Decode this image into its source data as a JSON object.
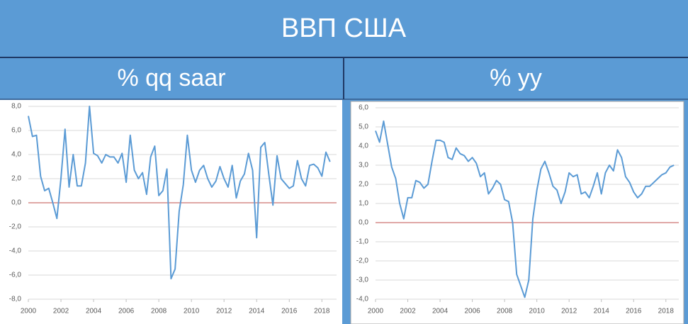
{
  "header": {
    "title": "ВВП США"
  },
  "chart_data": [
    {
      "type": "line",
      "title": "% qq saar",
      "x": [
        2000,
        2000.25,
        2000.5,
        2000.75,
        2001,
        2001.25,
        2001.5,
        2001.75,
        2002,
        2002.25,
        2002.5,
        2002.75,
        2003,
        2003.25,
        2003.5,
        2003.75,
        2004,
        2004.25,
        2004.5,
        2004.75,
        2005,
        2005.25,
        2005.5,
        2005.75,
        2006,
        2006.25,
        2006.5,
        2006.75,
        2007,
        2007.25,
        2007.5,
        2007.75,
        2008,
        2008.25,
        2008.5,
        2008.75,
        2009,
        2009.25,
        2009.5,
        2009.75,
        2010,
        2010.25,
        2010.5,
        2010.75,
        2011,
        2011.25,
        2011.5,
        2011.75,
        2012,
        2012.25,
        2012.5,
        2012.75,
        2013,
        2013.25,
        2013.5,
        2013.75,
        2014,
        2014.25,
        2014.5,
        2014.75,
        2015,
        2015.25,
        2015.5,
        2015.75,
        2016,
        2016.25,
        2016.5,
        2016.75,
        2017,
        2017.25,
        2017.5,
        2017.75,
        2018,
        2018.25,
        2018.5
      ],
      "series": [
        {
          "color": "#5b9bd5",
          "values": [
            7.2,
            5.5,
            5.6,
            2.2,
            1.0,
            1.2,
            0.0,
            -1.3,
            2.0,
            6.1,
            1.3,
            4.0,
            1.4,
            1.4,
            3.3,
            8.0,
            4.1,
            3.9,
            3.3,
            4.0,
            3.8,
            3.8,
            3.3,
            4.1,
            1.7,
            5.6,
            2.7,
            2.0,
            2.5,
            0.7,
            3.8,
            4.7,
            0.6,
            1.0,
            2.8,
            -6.3,
            -5.5,
            -0.7,
            1.5,
            5.6,
            2.7,
            1.7,
            2.7,
            3.1,
            2.0,
            1.3,
            1.8,
            3.0,
            2.0,
            1.3,
            3.1,
            0.4,
            1.8,
            2.4,
            4.1,
            2.7,
            -2.9,
            4.6,
            5.0,
            2.3,
            -0.2,
            3.9,
            2.0,
            1.6,
            1.2,
            1.4,
            3.5,
            2.0,
            1.4,
            3.1,
            3.2,
            2.9,
            2.2,
            4.2,
            3.4
          ]
        }
      ],
      "xlim": [
        2000,
        2018.9
      ],
      "xticks": [
        2000,
        2002,
        2004,
        2006,
        2008,
        2010,
        2012,
        2014,
        2016,
        2018
      ],
      "ylim": [
        -8,
        8
      ],
      "yticks": [
        {
          "value": -8,
          "label": "-8,0"
        },
        {
          "value": -6,
          "label": "-6,0"
        },
        {
          "value": -4,
          "label": "-4,0"
        },
        {
          "value": -2,
          "label": "-2,0"
        },
        {
          "value": 0,
          "label": "0,0"
        },
        {
          "value": 2,
          "label": "2,0"
        },
        {
          "value": 4,
          "label": "4,0"
        },
        {
          "value": 6,
          "label": "6,0"
        },
        {
          "value": 8,
          "label": "8,0"
        }
      ],
      "grid": true,
      "reference_line": {
        "value": 0,
        "color": "#c0504d"
      }
    },
    {
      "type": "line",
      "title": "% yy",
      "x": [
        2000,
        2000.25,
        2000.5,
        2000.75,
        2001,
        2001.25,
        2001.5,
        2001.75,
        2002,
        2002.25,
        2002.5,
        2002.75,
        2003,
        2003.25,
        2003.5,
        2003.75,
        2004,
        2004.25,
        2004.5,
        2004.75,
        2005,
        2005.25,
        2005.5,
        2005.75,
        2006,
        2006.25,
        2006.5,
        2006.75,
        2007,
        2007.25,
        2007.5,
        2007.75,
        2008,
        2008.25,
        2008.5,
        2008.75,
        2009,
        2009.25,
        2009.5,
        2009.75,
        2010,
        2010.25,
        2010.5,
        2010.75,
        2011,
        2011.25,
        2011.5,
        2011.75,
        2012,
        2012.25,
        2012.5,
        2012.75,
        2013,
        2013.25,
        2013.5,
        2013.75,
        2014,
        2014.25,
        2014.5,
        2014.75,
        2015,
        2015.25,
        2015.5,
        2015.75,
        2016,
        2016.25,
        2016.5,
        2016.75,
        2017,
        2017.25,
        2017.5,
        2017.75,
        2018,
        2018.25,
        2018.5
      ],
      "series": [
        {
          "color": "#5b9bd5",
          "values": [
            4.8,
            4.2,
            5.3,
            4.1,
            2.9,
            2.3,
            1.0,
            0.2,
            1.3,
            1.3,
            2.2,
            2.1,
            1.8,
            2.0,
            3.2,
            4.3,
            4.3,
            4.2,
            3.4,
            3.3,
            3.9,
            3.6,
            3.5,
            3.2,
            3.4,
            3.1,
            2.4,
            2.6,
            1.5,
            1.8,
            2.2,
            2.0,
            1.2,
            1.1,
            0.0,
            -2.7,
            -3.3,
            -3.9,
            -3.0,
            0.2,
            1.7,
            2.8,
            3.2,
            2.6,
            1.9,
            1.7,
            1.0,
            1.6,
            2.6,
            2.4,
            2.5,
            1.5,
            1.6,
            1.3,
            1.9,
            2.6,
            1.5,
            2.6,
            3.0,
            2.7,
            3.8,
            3.4,
            2.4,
            2.1,
            1.6,
            1.3,
            1.5,
            1.9,
            1.9,
            2.1,
            2.3,
            2.5,
            2.6,
            2.9,
            3.0
          ]
        }
      ],
      "xlim": [
        2000,
        2018.8
      ],
      "xticks": [
        2000,
        2002,
        2004,
        2006,
        2008,
        2010,
        2012,
        2014,
        2016,
        2018
      ],
      "ylim": [
        -4,
        6
      ],
      "yticks": [
        {
          "value": -4,
          "label": "-4,0"
        },
        {
          "value": -3,
          "label": "-3,0"
        },
        {
          "value": -2,
          "label": "-2,0"
        },
        {
          "value": -1,
          "label": "-1,0"
        },
        {
          "value": 0,
          "label": "0,0"
        },
        {
          "value": 1,
          "label": "1,0"
        },
        {
          "value": 2,
          "label": "2,0"
        },
        {
          "value": 3,
          "label": "3,0"
        },
        {
          "value": 4,
          "label": "4,0"
        },
        {
          "value": 5,
          "label": "5,0"
        },
        {
          "value": 6,
          "label": "6,0"
        }
      ],
      "grid": true,
      "reference_line": {
        "value": 0,
        "color": "#c0504d"
      }
    }
  ]
}
